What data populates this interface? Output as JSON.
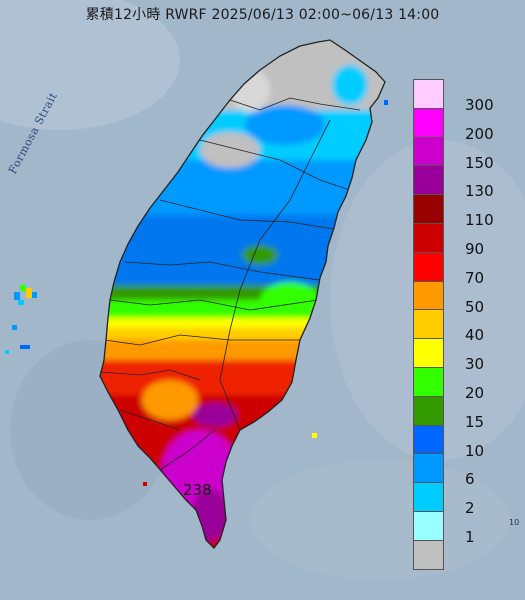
{
  "title": "累積12小時 RWRF 2025/06/13 02:00~06/13 14:00",
  "sea_label": "Formosa Strait",
  "max_value_label": "238",
  "edge_mark": "10",
  "legend": {
    "levels": [
      {
        "label": "300",
        "color": "#ffccff"
      },
      {
        "label": "200",
        "color": "#ff00ff"
      },
      {
        "label": "150",
        "color": "#cc00cc"
      },
      {
        "label": "130",
        "color": "#990099"
      },
      {
        "label": "110",
        "color": "#990000"
      },
      {
        "label": "90",
        "color": "#cc0000"
      },
      {
        "label": "70",
        "color": "#ff0000"
      },
      {
        "label": "50",
        "color": "#ff9900"
      },
      {
        "label": "40",
        "color": "#ffcc00"
      },
      {
        "label": "30",
        "color": "#ffff00"
      },
      {
        "label": "20",
        "color": "#33ff00"
      },
      {
        "label": "15",
        "color": "#339900"
      },
      {
        "label": "10",
        "color": "#0066ff"
      },
      {
        "label": "6",
        "color": "#0099ff"
      },
      {
        "label": "2",
        "color": "#00ccff"
      },
      {
        "label": "1",
        "color": "#99ffff"
      },
      {
        "label": "",
        "color": "#c0c0c0"
      }
    ]
  },
  "colors": {
    "sea": "#9fb4c8",
    "land_boundary": "#222222"
  }
}
